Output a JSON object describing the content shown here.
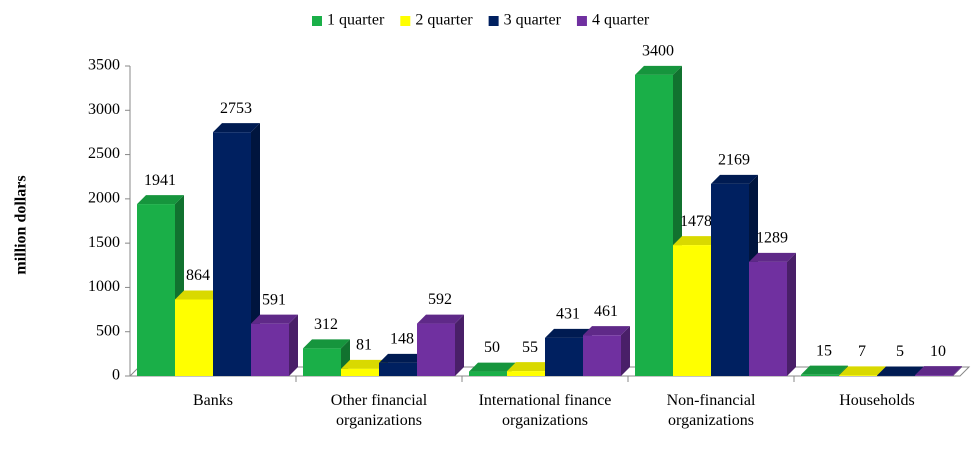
{
  "chart_data": {
    "type": "bar3d",
    "y_label": "million dollars",
    "categories": [
      "Banks",
      "Other financial organizations",
      "International finance organizations",
      "Non-financial organizations",
      "Households"
    ],
    "series": [
      {
        "name": "1 quarter",
        "color": "#1aaf48",
        "values": [
          1941,
          312,
          50,
          3400,
          15
        ]
      },
      {
        "name": "2 quarter",
        "color": "#ffff00",
        "values": [
          864,
          81,
          55,
          1478,
          7
        ]
      },
      {
        "name": "3 quarter",
        "color": "#002060",
        "values": [
          2753,
          148,
          431,
          2169,
          5
        ]
      },
      {
        "name": "4 quarter",
        "color": "#7030a0",
        "values": [
          591,
          592,
          461,
          1289,
          10
        ]
      }
    ],
    "ylim": [
      0,
      3500
    ],
    "yticks": [
      0,
      500,
      1000,
      1500,
      2000,
      2500,
      3000,
      3500
    ],
    "legend": "top"
  }
}
